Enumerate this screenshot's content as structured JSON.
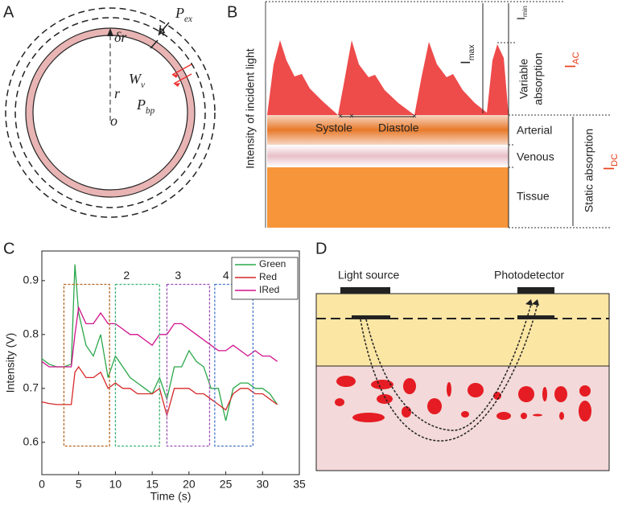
{
  "panel_a": {
    "label": "A",
    "symbols": [
      {
        "main": "P",
        "sub": "ex"
      },
      {
        "main": "h"
      },
      {
        "main": "δr"
      },
      {
        "main": "W",
        "sub": "v"
      },
      {
        "main": "r"
      },
      {
        "main": "P",
        "sub": "bp"
      },
      {
        "main": "o"
      }
    ]
  },
  "panel_b": {
    "label": "B",
    "y_axis_label": "Intensity of incident light",
    "phase_labels": [
      "Systole",
      "Diastole"
    ],
    "i_max": {
      "main": "I",
      "sub": "max"
    },
    "i_min": {
      "main": "I",
      "sub": "min"
    },
    "variable_absorption": [
      "Variable",
      "absorption"
    ],
    "i_ac": {
      "main": "I",
      "sub": "AC"
    },
    "layers": [
      "Arterial",
      "Venous",
      "Tissue"
    ],
    "static_absorption": "Static absorption",
    "i_dc": {
      "main": "I",
      "sub": "DC"
    }
  },
  "chart_data": {
    "type": "line",
    "panel_label": "C",
    "x_label": "Time (s)",
    "y_label": "Intensity (V)",
    "x": [
      0,
      1,
      2,
      3,
      4,
      4.5,
      5,
      6,
      7,
      8,
      9,
      10,
      11,
      12,
      13,
      14,
      15,
      16,
      17,
      18,
      19,
      20,
      21,
      22,
      23,
      24,
      25,
      26,
      27,
      28,
      29,
      30,
      31,
      32
    ],
    "series": [
      {
        "name": "Green",
        "color": "#2aa84a",
        "values": [
          0.755,
          0.745,
          0.74,
          0.74,
          0.745,
          0.93,
          0.84,
          0.78,
          0.76,
          0.8,
          0.72,
          0.76,
          0.74,
          0.72,
          0.71,
          0.7,
          0.69,
          0.72,
          0.68,
          0.74,
          0.74,
          0.77,
          0.75,
          0.74,
          0.7,
          0.7,
          0.64,
          0.7,
          0.71,
          0.71,
          0.7,
          0.7,
          0.69,
          0.67
        ]
      },
      {
        "name": "Red",
        "color": "#d62728",
        "values": [
          0.675,
          0.672,
          0.67,
          0.67,
          0.67,
          0.73,
          0.74,
          0.72,
          0.72,
          0.73,
          0.7,
          0.71,
          0.7,
          0.7,
          0.69,
          0.69,
          0.69,
          0.7,
          0.65,
          0.7,
          0.7,
          0.7,
          0.69,
          0.69,
          0.68,
          0.67,
          0.66,
          0.69,
          0.7,
          0.7,
          0.69,
          0.69,
          0.68,
          0.67
        ]
      },
      {
        "name": "IRed",
        "color": "#d0108c",
        "values": [
          0.75,
          0.74,
          0.74,
          0.74,
          0.74,
          0.8,
          0.85,
          0.82,
          0.82,
          0.84,
          0.82,
          0.82,
          0.81,
          0.8,
          0.8,
          0.79,
          0.78,
          0.8,
          0.8,
          0.82,
          0.82,
          0.81,
          0.8,
          0.79,
          0.78,
          0.77,
          0.77,
          0.78,
          0.77,
          0.76,
          0.77,
          0.76,
          0.76,
          0.75
        ]
      }
    ],
    "regions": [
      {
        "label": null,
        "x": [
          3,
          9.2
        ],
        "y": [
          0.593,
          0.893
        ],
        "color": "#b5651d"
      },
      {
        "label": "2",
        "x": [
          10,
          16
        ],
        "y": [
          0.593,
          0.893
        ],
        "color": "#3cb371"
      },
      {
        "label": "3",
        "x": [
          17,
          22.8
        ],
        "y": [
          0.593,
          0.893
        ],
        "color": "#9b4fb0"
      },
      {
        "label": "4",
        "x": [
          23.5,
          28.7
        ],
        "y": [
          0.593,
          0.893
        ],
        "color": "#4a78c8"
      }
    ],
    "xlim": [
      0,
      35
    ],
    "xticks": [
      0,
      5,
      10,
      15,
      20,
      25,
      30,
      35
    ],
    "ylim": [
      0.54,
      0.955
    ],
    "yticks": [
      0.6,
      0.7,
      0.8,
      0.9
    ],
    "legend": "upper right"
  },
  "panel_d": {
    "label": "D",
    "light_source": "Light source",
    "photodetector": "Photodetector"
  }
}
